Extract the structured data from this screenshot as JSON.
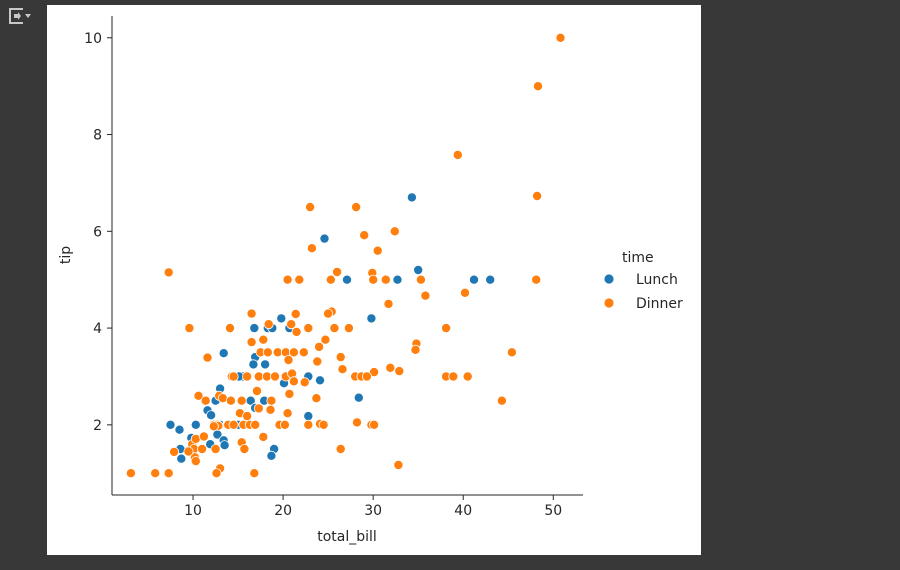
{
  "cell": {
    "output_icon": "collapse-output-icon"
  },
  "chart_data": {
    "type": "scatter",
    "title": "",
    "xlabel": "total_bill",
    "ylabel": "tip",
    "xlim": [
      1.0,
      53.3
    ],
    "ylim": [
      0.55,
      10.45
    ],
    "xticks": [
      10,
      20,
      30,
      40,
      50
    ],
    "yticks": [
      2,
      4,
      6,
      8,
      10
    ],
    "grid": false,
    "legend": {
      "title": "time",
      "position": "right"
    },
    "series": [
      {
        "name": "Lunch",
        "color": "#1f77b4",
        "points": [
          [
            34.3,
            6.7
          ],
          [
            24.6,
            5.85
          ],
          [
            27.1,
            5.0
          ],
          [
            32.7,
            5.0
          ],
          [
            35.0,
            5.2
          ],
          [
            41.2,
            5.0
          ],
          [
            43.0,
            5.0
          ],
          [
            29.8,
            4.2
          ],
          [
            19.8,
            4.2
          ],
          [
            20.7,
            4.0
          ],
          [
            16.8,
            4.0
          ],
          [
            18.3,
            4.0
          ],
          [
            18.8,
            4.0
          ],
          [
            13.4,
            3.48
          ],
          [
            17.5,
            3.5
          ],
          [
            16.9,
            3.4
          ],
          [
            18.0,
            3.25
          ],
          [
            16.7,
            3.25
          ],
          [
            15.5,
            3.0
          ],
          [
            15.1,
            3.0
          ],
          [
            21.0,
            3.0
          ],
          [
            22.8,
            3.0
          ],
          [
            24.1,
            2.92
          ],
          [
            20.1,
            2.86
          ],
          [
            13.0,
            2.75
          ],
          [
            16.4,
            2.5
          ],
          [
            17.9,
            2.5
          ],
          [
            16.9,
            2.35
          ],
          [
            11.6,
            2.3
          ],
          [
            12.0,
            2.2
          ],
          [
            22.8,
            2.18
          ],
          [
            13.0,
            2.0
          ],
          [
            13.8,
            2.0
          ],
          [
            12.4,
            2.0
          ],
          [
            15.0,
            2.0
          ],
          [
            15.8,
            2.0
          ],
          [
            10.3,
            2.0
          ],
          [
            8.5,
            1.9
          ],
          [
            7.5,
            2.0
          ],
          [
            9.8,
            1.73
          ],
          [
            12.7,
            1.8
          ],
          [
            13.4,
            1.68
          ],
          [
            11.9,
            1.6
          ],
          [
            13.5,
            1.58
          ],
          [
            8.6,
            1.5
          ],
          [
            8.7,
            1.3
          ],
          [
            19.0,
            1.5
          ],
          [
            18.7,
            1.36
          ],
          [
            28.4,
            2.56
          ],
          [
            12.5,
            2.5
          ]
        ]
      },
      {
        "name": "Dinner",
        "color": "#ff7f0e",
        "points": [
          [
            50.8,
            10.0
          ],
          [
            48.3,
            9.0
          ],
          [
            39.4,
            7.58
          ],
          [
            48.2,
            6.73
          ],
          [
            23.0,
            6.5
          ],
          [
            28.1,
            6.5
          ],
          [
            32.4,
            6.0
          ],
          [
            29.0,
            5.92
          ],
          [
            23.2,
            5.65
          ],
          [
            30.5,
            5.6
          ],
          [
            7.3,
            5.15
          ],
          [
            26.0,
            5.16
          ],
          [
            29.9,
            5.14
          ],
          [
            30.0,
            5.0
          ],
          [
            31.4,
            5.0
          ],
          [
            25.3,
            5.0
          ],
          [
            20.5,
            5.0
          ],
          [
            21.8,
            5.0
          ],
          [
            48.1,
            5.0
          ],
          [
            35.3,
            5.0
          ],
          [
            40.2,
            4.73
          ],
          [
            35.8,
            4.67
          ],
          [
            31.7,
            4.5
          ],
          [
            25.4,
            4.34
          ],
          [
            25.0,
            4.3
          ],
          [
            21.4,
            4.29
          ],
          [
            16.5,
            4.3
          ],
          [
            9.6,
            4.0
          ],
          [
            14.1,
            4.0
          ],
          [
            18.4,
            4.08
          ],
          [
            20.9,
            4.08
          ],
          [
            21.5,
            3.92
          ],
          [
            22.8,
            4.0
          ],
          [
            25.7,
            4.0
          ],
          [
            27.3,
            4.0
          ],
          [
            38.1,
            4.0
          ],
          [
            17.8,
            3.76
          ],
          [
            24.7,
            3.76
          ],
          [
            34.8,
            3.68
          ],
          [
            34.7,
            3.55
          ],
          [
            45.4,
            3.5
          ],
          [
            11.6,
            3.39
          ],
          [
            16.5,
            3.71
          ],
          [
            19.4,
            3.5
          ],
          [
            20.3,
            3.5
          ],
          [
            21.2,
            3.5
          ],
          [
            22.3,
            3.5
          ],
          [
            17.5,
            3.5
          ],
          [
            18.3,
            3.5
          ],
          [
            20.6,
            3.34
          ],
          [
            24.0,
            3.61
          ],
          [
            23.8,
            3.31
          ],
          [
            26.4,
            3.4
          ],
          [
            30.1,
            3.09
          ],
          [
            32.9,
            3.11
          ],
          [
            31.9,
            3.18
          ],
          [
            26.6,
            3.15
          ],
          [
            14.3,
            3.0
          ],
          [
            14.5,
            3.0
          ],
          [
            16.0,
            3.0
          ],
          [
            17.3,
            3.0
          ],
          [
            18.2,
            3.0
          ],
          [
            19.1,
            3.0
          ],
          [
            20.3,
            3.0
          ],
          [
            21.0,
            3.06
          ],
          [
            28.0,
            3.0
          ],
          [
            28.7,
            3.0
          ],
          [
            29.3,
            3.0
          ],
          [
            38.1,
            3.0
          ],
          [
            38.9,
            3.0
          ],
          [
            40.5,
            3.0
          ],
          [
            12.9,
            2.6
          ],
          [
            15.4,
            2.5
          ],
          [
            17.1,
            2.7
          ],
          [
            18.7,
            2.5
          ],
          [
            20.7,
            2.64
          ],
          [
            21.2,
            2.9
          ],
          [
            22.4,
            2.88
          ],
          [
            23.7,
            2.55
          ],
          [
            10.6,
            2.6
          ],
          [
            11.4,
            2.5
          ],
          [
            13.3,
            2.55
          ],
          [
            14.2,
            2.5
          ],
          [
            17.3,
            2.34
          ],
          [
            18.6,
            2.31
          ],
          [
            19.6,
            2.01
          ],
          [
            20.5,
            2.24
          ],
          [
            44.3,
            2.5
          ],
          [
            15.2,
            2.24
          ],
          [
            16.0,
            2.18
          ],
          [
            9.9,
            1.6
          ],
          [
            10.1,
            1.5
          ],
          [
            10.3,
            1.71
          ],
          [
            11.0,
            1.5
          ],
          [
            11.2,
            1.76
          ],
          [
            12.3,
            2.0
          ],
          [
            12.7,
            2.0
          ],
          [
            13.9,
            2.0
          ],
          [
            14.5,
            2.0
          ],
          [
            15.6,
            2.0
          ],
          [
            16.3,
            2.0
          ],
          [
            16.9,
            2.0
          ],
          [
            19.6,
            2.0
          ],
          [
            20.2,
            2.0
          ],
          [
            22.8,
            2.0
          ],
          [
            24.1,
            2.02
          ],
          [
            24.5,
            2.0
          ],
          [
            28.2,
            2.05
          ],
          [
            29.8,
            2.0
          ],
          [
            30.1,
            2.0
          ],
          [
            10.2,
            1.33
          ],
          [
            10.3,
            1.25
          ],
          [
            9.5,
            1.45
          ],
          [
            7.9,
            1.44
          ],
          [
            12.5,
            1.5
          ],
          [
            13.0,
            1.1
          ],
          [
            15.4,
            1.64
          ],
          [
            15.7,
            1.5
          ],
          [
            17.8,
            1.75
          ],
          [
            26.4,
            1.5
          ],
          [
            32.8,
            1.17
          ],
          [
            3.1,
            1.0
          ],
          [
            5.8,
            1.0
          ],
          [
            7.3,
            1.0
          ],
          [
            12.6,
            1.0
          ],
          [
            16.8,
            1.0
          ],
          [
            12.8,
            1.98
          ],
          [
            12.3,
            1.97
          ]
        ]
      }
    ]
  }
}
